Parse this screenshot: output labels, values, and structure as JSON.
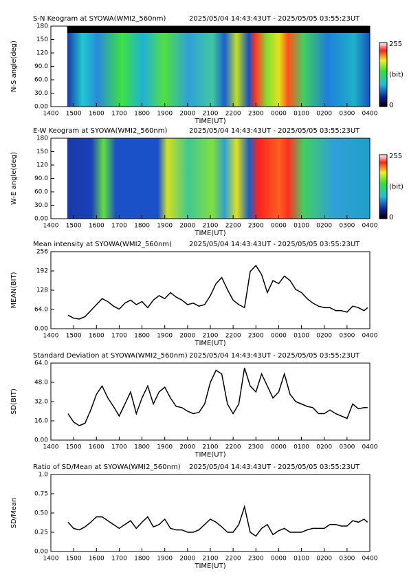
{
  "chart_data": [
    {
      "type": "keogram",
      "title": "S-N Keogram at SYOWA(WMI2_560nm)",
      "time_range": "2025/05/04 14:43:43UT - 2025/05/05 03:55:23UT",
      "ylabel": "N-S angle(deg)",
      "xlabel": "TIME(UT)",
      "xlim": [
        14,
        28
      ],
      "xticks": [
        {
          "value": 14,
          "label": "1400"
        },
        {
          "value": 15,
          "label": "1500"
        },
        {
          "value": 16,
          "label": "1600"
        },
        {
          "value": 17,
          "label": "1700"
        },
        {
          "value": 18,
          "label": "1800"
        },
        {
          "value": 19,
          "label": "1900"
        },
        {
          "value": 20,
          "label": "2000"
        },
        {
          "value": 21,
          "label": "2100"
        },
        {
          "value": 22,
          "label": "2200"
        },
        {
          "value": 23,
          "label": "2300"
        },
        {
          "value": 24,
          "label": "0000"
        },
        {
          "value": 25,
          "label": "0100"
        },
        {
          "value": 26,
          "label": "0200"
        },
        {
          "value": 27,
          "label": "0300"
        },
        {
          "value": 28,
          "label": "0400"
        }
      ],
      "ylim": [
        0,
        180
      ],
      "yticks": [
        {
          "value": 0,
          "label": "0.00"
        },
        {
          "value": 30,
          "label": "30.0"
        },
        {
          "value": 60,
          "label": "60.0"
        },
        {
          "value": 90,
          "label": "90.0"
        },
        120,
        150,
        180
      ],
      "colorbar": {
        "min": 0,
        "max": 255,
        "label": "(bit)"
      }
    },
    {
      "type": "keogram",
      "title": "E-W Keogram at SYOWA(WMI2_560nm)",
      "time_range": "2025/05/04 14:43:43UT - 2025/05/05 03:55:23UT",
      "ylabel": "W-E angle(deg)",
      "xlabel": "TIME(UT)",
      "xlim": [
        14,
        28
      ],
      "xticks": [
        {
          "value": 14,
          "label": "1400"
        },
        {
          "value": 15,
          "label": "1500"
        },
        {
          "value": 16,
          "label": "1600"
        },
        {
          "value": 17,
          "label": "1700"
        },
        {
          "value": 18,
          "label": "1800"
        },
        {
          "value": 19,
          "label": "1900"
        },
        {
          "value": 20,
          "label": "2000"
        },
        {
          "value": 21,
          "label": "2100"
        },
        {
          "value": 22,
          "label": "2200"
        },
        {
          "value": 23,
          "label": "2300"
        },
        {
          "value": 24,
          "label": "0000"
        },
        {
          "value": 25,
          "label": "0100"
        },
        {
          "value": 26,
          "label": "0200"
        },
        {
          "value": 27,
          "label": "0300"
        },
        {
          "value": 28,
          "label": "0400"
        }
      ],
      "ylim": [
        0,
        180
      ],
      "yticks": [
        {
          "value": 0,
          "label": "0.00"
        },
        {
          "value": 30,
          "label": "30.0"
        },
        {
          "value": 60,
          "label": "60.0"
        },
        {
          "value": 90,
          "label": "90.0"
        },
        120,
        150,
        180
      ],
      "colorbar": {
        "min": 0,
        "max": 255,
        "label": "(bit)"
      }
    },
    {
      "type": "line",
      "title": "Mean intensity at SYOWA(WMI2_560nm)",
      "time_range": "2025/05/04 14:43:43UT - 2025/05/05 03:55:23UT",
      "ylabel": "MEAN(BIT)",
      "xlabel": "TIME(UT)",
      "color": "#000000",
      "xlim": [
        14,
        28
      ],
      "xticks": [
        {
          "value": 14,
          "label": "1400"
        },
        {
          "value": 15,
          "label": "1500"
        },
        {
          "value": 16,
          "label": "1600"
        },
        {
          "value": 17,
          "label": "1700"
        },
        {
          "value": 18,
          "label": "1800"
        },
        {
          "value": 19,
          "label": "1900"
        },
        {
          "value": 20,
          "label": "2000"
        },
        {
          "value": 21,
          "label": "2100"
        },
        {
          "value": 22,
          "label": "2200"
        },
        {
          "value": 23,
          "label": "2300"
        },
        {
          "value": 24,
          "label": "0000"
        },
        {
          "value": 25,
          "label": "0100"
        },
        {
          "value": 26,
          "label": "0200"
        },
        {
          "value": 27,
          "label": "0300"
        },
        {
          "value": 28,
          "label": "0400"
        }
      ],
      "ylim": [
        0,
        256
      ],
      "yticks": [
        {
          "value": 0,
          "label": "0.00"
        },
        {
          "value": 64,
          "label": "64.0"
        },
        128,
        192,
        256
      ],
      "x": [
        14.75,
        15,
        15.25,
        15.5,
        15.75,
        16,
        16.25,
        16.5,
        16.75,
        17,
        17.25,
        17.5,
        17.75,
        18,
        18.25,
        18.5,
        18.75,
        19,
        19.25,
        19.5,
        19.75,
        20,
        20.25,
        20.5,
        20.75,
        21,
        21.25,
        21.5,
        21.75,
        22,
        22.25,
        22.5,
        22.75,
        23,
        23.25,
        23.5,
        23.75,
        24,
        24.25,
        24.5,
        24.75,
        25,
        25.25,
        25.5,
        25.75,
        26,
        26.25,
        26.5,
        26.75,
        27,
        27.25,
        27.5,
        27.75,
        27.9
      ],
      "values": [
        45,
        35,
        32,
        40,
        60,
        80,
        100,
        90,
        75,
        65,
        85,
        95,
        80,
        90,
        70,
        95,
        110,
        100,
        120,
        105,
        95,
        80,
        85,
        75,
        80,
        110,
        150,
        170,
        130,
        95,
        80,
        70,
        190,
        210,
        180,
        120,
        160,
        150,
        175,
        160,
        130,
        120,
        100,
        85,
        75,
        70,
        70,
        60,
        60,
        55,
        75,
        70,
        60,
        70
      ]
    },
    {
      "type": "line",
      "title": "Standard Deviation at SYOWA(WMI2_560nm)",
      "time_range": "2025/05/04 14:43:43UT - 2025/05/05 03:55:23UT",
      "ylabel": "SD(BIT)",
      "xlabel": "TIME(UT)",
      "color": "#000000",
      "xlim": [
        14,
        28
      ],
      "xticks": [
        {
          "value": 14,
          "label": "1400"
        },
        {
          "value": 15,
          "label": "1500"
        },
        {
          "value": 16,
          "label": "1600"
        },
        {
          "value": 17,
          "label": "1700"
        },
        {
          "value": 18,
          "label": "1800"
        },
        {
          "value": 19,
          "label": "1900"
        },
        {
          "value": 20,
          "label": "2000"
        },
        {
          "value": 21,
          "label": "2100"
        },
        {
          "value": 22,
          "label": "2200"
        },
        {
          "value": 23,
          "label": "2300"
        },
        {
          "value": 24,
          "label": "0000"
        },
        {
          "value": 25,
          "label": "0100"
        },
        {
          "value": 26,
          "label": "0200"
        },
        {
          "value": 27,
          "label": "0300"
        },
        {
          "value": 28,
          "label": "0400"
        }
      ],
      "ylim": [
        0,
        64
      ],
      "yticks": [
        {
          "value": 0,
          "label": "0.00"
        },
        {
          "value": 16,
          "label": "16.0"
        },
        {
          "value": 32,
          "label": "32.0"
        },
        {
          "value": 48,
          "label": "48.0"
        },
        {
          "value": 64,
          "label": "64.0"
        }
      ],
      "x": [
        14.75,
        15,
        15.25,
        15.5,
        15.75,
        16,
        16.25,
        16.5,
        16.75,
        17,
        17.25,
        17.5,
        17.75,
        18,
        18.25,
        18.5,
        18.75,
        19,
        19.25,
        19.5,
        19.75,
        20,
        20.25,
        20.5,
        20.75,
        21,
        21.25,
        21.5,
        21.75,
        22,
        22.25,
        22.5,
        22.75,
        23,
        23.25,
        23.5,
        23.75,
        24,
        24.25,
        24.5,
        24.75,
        25,
        25.25,
        25.5,
        25.75,
        26,
        26.25,
        26.5,
        26.75,
        27,
        27.25,
        27.5,
        27.75,
        27.9
      ],
      "values": [
        22,
        15,
        12,
        14,
        25,
        38,
        45,
        35,
        28,
        20,
        30,
        40,
        22,
        35,
        45,
        30,
        40,
        44,
        35,
        28,
        27,
        24,
        22,
        23,
        30,
        48,
        58,
        55,
        30,
        22,
        30,
        60,
        45,
        40,
        55,
        45,
        35,
        40,
        55,
        38,
        32,
        30,
        28,
        27,
        22,
        22,
        25,
        22,
        20,
        18,
        30,
        26,
        27,
        27
      ]
    },
    {
      "type": "line",
      "title": "Ratio of SD/Mean at SYOWA(WMI2_560nm)",
      "time_range": "2025/05/04 14:43:43UT - 2025/05/05 03:55:23UT",
      "ylabel": "SD/Mean",
      "xlabel": "TIME(UT)",
      "color": "#000000",
      "xlim": [
        14,
        28
      ],
      "xticks": [
        {
          "value": 14,
          "label": "1400"
        },
        {
          "value": 15,
          "label": "1500"
        },
        {
          "value": 16,
          "label": "1600"
        },
        {
          "value": 17,
          "label": "1700"
        },
        {
          "value": 18,
          "label": "1800"
        },
        {
          "value": 19,
          "label": "1900"
        },
        {
          "value": 20,
          "label": "2000"
        },
        {
          "value": 21,
          "label": "2100"
        },
        {
          "value": 22,
          "label": "2200"
        },
        {
          "value": 23,
          "label": "2300"
        },
        {
          "value": 24,
          "label": "0000"
        },
        {
          "value": 25,
          "label": "0100"
        },
        {
          "value": 26,
          "label": "0200"
        },
        {
          "value": 27,
          "label": "0300"
        },
        {
          "value": 28,
          "label": "0400"
        }
      ],
      "ylim": [
        0,
        1
      ],
      "yticks": [
        {
          "value": 0,
          "label": "0.00"
        },
        0.25,
        {
          "value": 0.5,
          "label": "0.50"
        },
        0.75,
        {
          "value": 1,
          "label": "1.0"
        }
      ],
      "x": [
        14.75,
        15,
        15.25,
        15.5,
        15.75,
        16,
        16.25,
        16.5,
        16.75,
        17,
        17.25,
        17.5,
        17.75,
        18,
        18.25,
        18.5,
        18.75,
        19,
        19.25,
        19.5,
        19.75,
        20,
        20.25,
        20.5,
        20.75,
        21,
        21.25,
        21.5,
        21.75,
        22,
        22.25,
        22.5,
        22.75,
        23,
        23.25,
        23.5,
        23.75,
        24,
        24.25,
        24.5,
        24.75,
        25,
        25.25,
        25.5,
        25.75,
        26,
        26.25,
        26.5,
        26.75,
        27,
        27.25,
        27.5,
        27.75,
        27.9
      ],
      "values": [
        0.38,
        0.3,
        0.28,
        0.32,
        0.38,
        0.45,
        0.45,
        0.4,
        0.35,
        0.3,
        0.35,
        0.4,
        0.3,
        0.38,
        0.45,
        0.32,
        0.35,
        0.42,
        0.3,
        0.28,
        0.28,
        0.25,
        0.25,
        0.28,
        0.35,
        0.42,
        0.38,
        0.32,
        0.25,
        0.25,
        0.35,
        0.58,
        0.25,
        0.2,
        0.3,
        0.35,
        0.22,
        0.27,
        0.3,
        0.25,
        0.25,
        0.25,
        0.28,
        0.3,
        0.3,
        0.3,
        0.35,
        0.35,
        0.33,
        0.33,
        0.4,
        0.38,
        0.42,
        0.38
      ]
    }
  ]
}
